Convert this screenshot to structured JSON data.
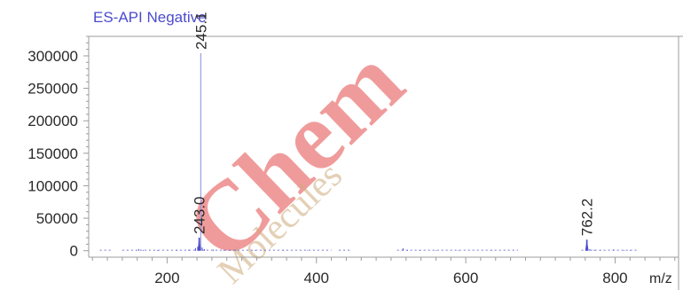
{
  "chart_data": {
    "type": "spectrum",
    "title": "ES-API Negative",
    "xunit": "m/z",
    "xlim": [
      95,
      885
    ],
    "ylim": [
      -10000,
      330000
    ],
    "xticks": [
      200,
      400,
      600,
      800
    ],
    "xtick_labels": [
      "200",
      "400",
      "600",
      "800"
    ],
    "yticks": [
      0,
      50000,
      100000,
      150000,
      200000,
      250000,
      300000
    ],
    "ytick_labels": [
      "0",
      "50000",
      "100000",
      "150000",
      "200000",
      "250000",
      "300000"
    ],
    "peaks": [
      {
        "mz": 245.1,
        "intensity": 304000,
        "label": "245.1"
      },
      {
        "mz": 243.0,
        "intensity": 20000,
        "label": "243.0"
      },
      {
        "mz": 762.2,
        "intensity": 17000,
        "label": "762.2"
      }
    ],
    "noise_peaks": [
      {
        "mz": 162,
        "intensity": 2500
      },
      {
        "mz": 168,
        "intensity": 1200
      },
      {
        "mz": 187,
        "intensity": 900
      },
      {
        "mz": 213,
        "intensity": 1100
      },
      {
        "mz": 229,
        "intensity": 1600
      },
      {
        "mz": 238,
        "intensity": 4000
      },
      {
        "mz": 241,
        "intensity": 6000
      },
      {
        "mz": 247,
        "intensity": 5000
      },
      {
        "mz": 250,
        "intensity": 2200
      },
      {
        "mz": 262,
        "intensity": 1500
      },
      {
        "mz": 276,
        "intensity": 900
      },
      {
        "mz": 292,
        "intensity": 1300
      },
      {
        "mz": 318,
        "intensity": 800
      },
      {
        "mz": 356,
        "intensity": 900
      },
      {
        "mz": 388,
        "intensity": 700
      },
      {
        "mz": 516,
        "intensity": 3500
      },
      {
        "mz": 522,
        "intensity": 1200
      },
      {
        "mz": 538,
        "intensity": 900
      },
      {
        "mz": 560,
        "intensity": 800
      },
      {
        "mz": 590,
        "intensity": 700
      },
      {
        "mz": 635,
        "intensity": 600
      },
      {
        "mz": 766,
        "intensity": 2200
      },
      {
        "mz": 772,
        "intensity": 1400
      },
      {
        "mz": 780,
        "intensity": 900
      },
      {
        "mz": 798,
        "intensity": 1800
      },
      {
        "mz": 812,
        "intensity": 900
      },
      {
        "mz": 820,
        "intensity": 700
      }
    ],
    "baseline_ranges": [
      [
        110,
        125
      ],
      [
        140,
        420
      ],
      [
        430,
        445
      ],
      [
        508,
        670
      ],
      [
        755,
        830
      ]
    ],
    "colors": {
      "trace": "#4545c8",
      "major_peak_line": "#9a9ae0",
      "title": "#4b4bcc",
      "frame": "#9c9c9c",
      "text": "#2a2a2a"
    },
    "watermark": {
      "primary_text": "Chem",
      "primary_color": "#e03535",
      "secondary_text": "Molecules",
      "secondary_color": "#c9a06b"
    }
  }
}
